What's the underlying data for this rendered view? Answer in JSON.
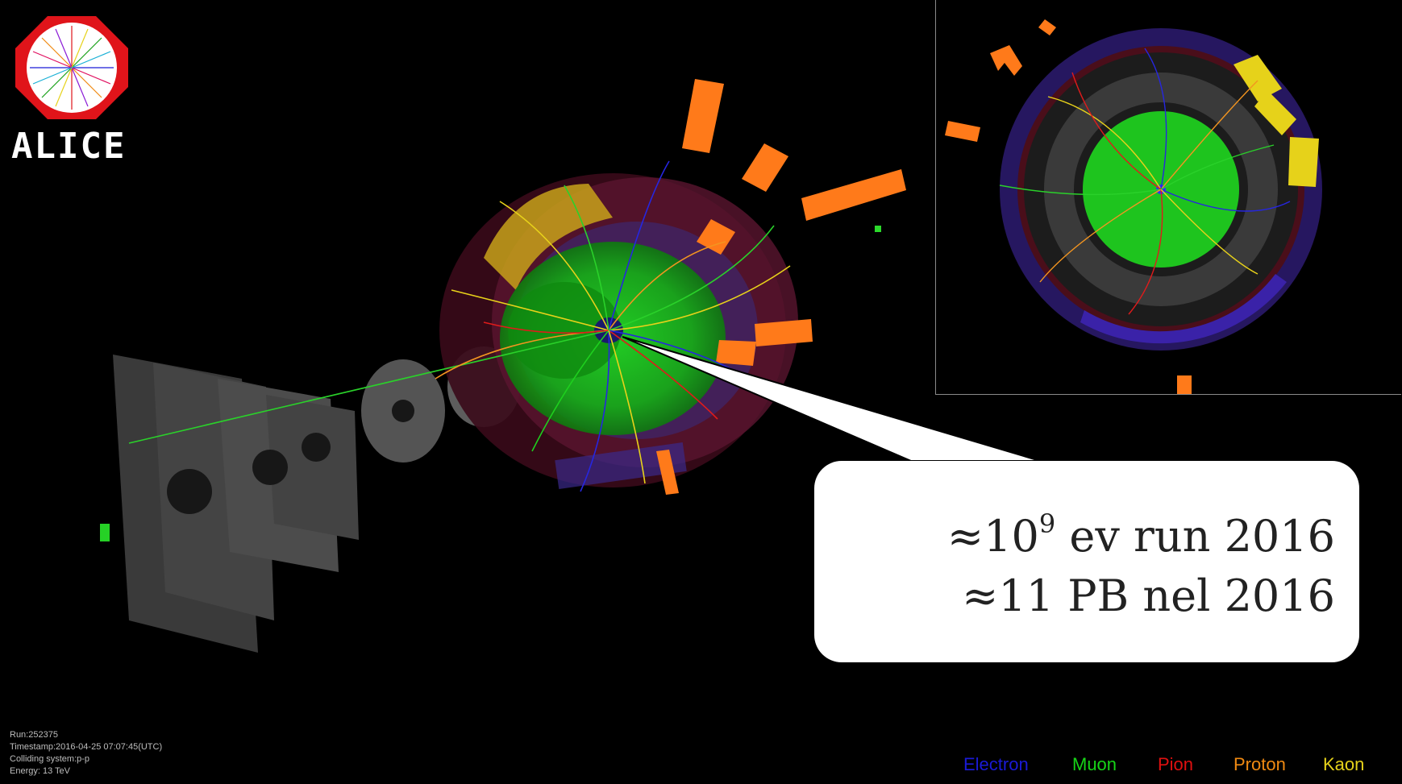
{
  "logo": {
    "text": "ALICE"
  },
  "callout": {
    "line1_prefix": "≈10",
    "line1_exponent": "9",
    "line1_suffix": " ev run 2016",
    "line2": "≈11 PB nel 2016"
  },
  "event_info": {
    "run": "Run:252375",
    "timestamp": "Timestamp:2016-04-25 07:07:45(UTC)",
    "colliding_system": "Colliding system:p-p",
    "energy": "Energy: 13 TeV"
  },
  "legend": [
    {
      "label": "Electron",
      "color": "#1a1ad6"
    },
    {
      "label": "Muon",
      "color": "#17d417"
    },
    {
      "label": "Pion",
      "color": "#e01010"
    },
    {
      "label": "Proton",
      "color": "#f08a12"
    },
    {
      "label": "Kaon",
      "color": "#e6d21a"
    }
  ],
  "colors": {
    "background": "#000000",
    "tpc_green": "#18c418",
    "calorimeter_orange": "#ff7a1a",
    "logo_red": "#e0141a"
  }
}
